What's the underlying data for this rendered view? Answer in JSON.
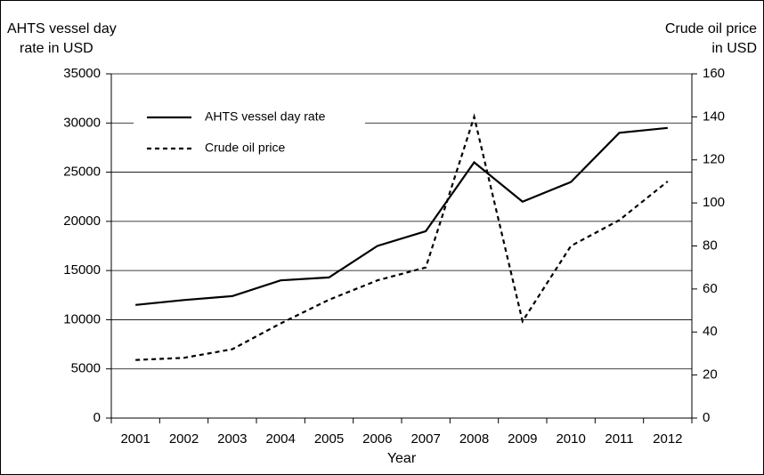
{
  "chart_data": {
    "type": "line",
    "xlabel": "Year",
    "ylabel": [
      "AHTS vessel day",
      "rate in USD"
    ],
    "y2label": [
      "Crude oil price",
      "in USD"
    ],
    "categories": [
      "2001",
      "2002",
      "2003",
      "2004",
      "2005",
      "2006",
      "2007",
      "2008",
      "2009",
      "2010",
      "2011",
      "2012"
    ],
    "series": [
      {
        "name": "AHTS vessel day rate",
        "color": "#000000",
        "dash": false,
        "values": [
          11500,
          12000,
          12400,
          14000,
          14300,
          17500,
          19000,
          26000,
          22000,
          24000,
          29000,
          29500
        ]
      },
      {
        "name": "Crude oil price",
        "color": "#000000",
        "dash": true,
        "axis": "y2",
        "values": [
          27,
          28,
          32,
          44,
          55,
          64,
          70,
          140,
          45,
          80,
          92,
          110
        ]
      }
    ],
    "ylim": [
      0,
      35000
    ],
    "yticks": [
      0,
      5000,
      10000,
      15000,
      20000,
      25000,
      30000,
      35000
    ],
    "y2lim": [
      0,
      160
    ],
    "y2ticks": [
      0,
      20,
      40,
      60,
      80,
      100,
      120,
      140,
      160
    ],
    "grid": true,
    "legend": "upper left"
  }
}
